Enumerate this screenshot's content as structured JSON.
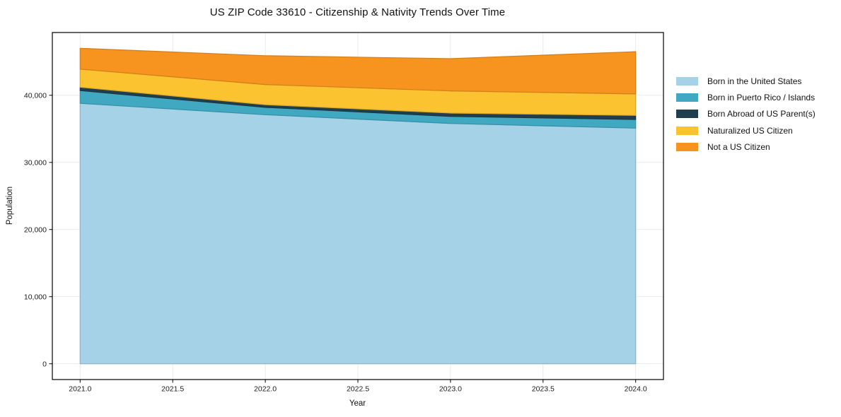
{
  "chart_data": {
    "type": "area",
    "stacked": true,
    "title": "US ZIP Code 33610 - Citizenship & Nativity Trends Over Time",
    "xlabel": "Year",
    "ylabel": "Population",
    "x": [
      2021,
      2022,
      2023,
      2024
    ],
    "series": [
      {
        "name": "Born in the United States",
        "color": "#a5d2e7",
        "values": [
          38800,
          37100,
          35800,
          35100
        ]
      },
      {
        "name": "Born in Puerto Rico / Islands",
        "color": "#41a8c2",
        "values": [
          1900,
          1100,
          1050,
          1300
        ]
      },
      {
        "name": "Born Abroad of US Parent(s)",
        "color": "#1f3f4e",
        "values": [
          500,
          400,
          500,
          600
        ]
      },
      {
        "name": "Naturalized US Citizen",
        "color": "#fcc330",
        "values": [
          2700,
          3000,
          3300,
          3200
        ]
      },
      {
        "name": "Not a US Citizen",
        "color": "#f7941f",
        "values": [
          3100,
          4300,
          4800,
          6300
        ]
      }
    ],
    "xlim": [
      2020.85,
      2024.15
    ],
    "ylim": [
      -2350,
      49350
    ],
    "xticks": [
      "2021.0",
      "2021.5",
      "2022.0",
      "2022.5",
      "2023.0",
      "2023.5",
      "2024.0"
    ],
    "xtick_values": [
      2021,
      2021.5,
      2022,
      2022.5,
      2023,
      2023.5,
      2024
    ],
    "yticks": [
      "0",
      "10,000",
      "20,000",
      "30,000",
      "40,000"
    ],
    "ytick_values": [
      0,
      10000,
      20000,
      30000,
      40000
    ],
    "grid": true,
    "legend_position": "right",
    "frame_color": "#000000",
    "gridline_color": "#e8e8e8"
  }
}
